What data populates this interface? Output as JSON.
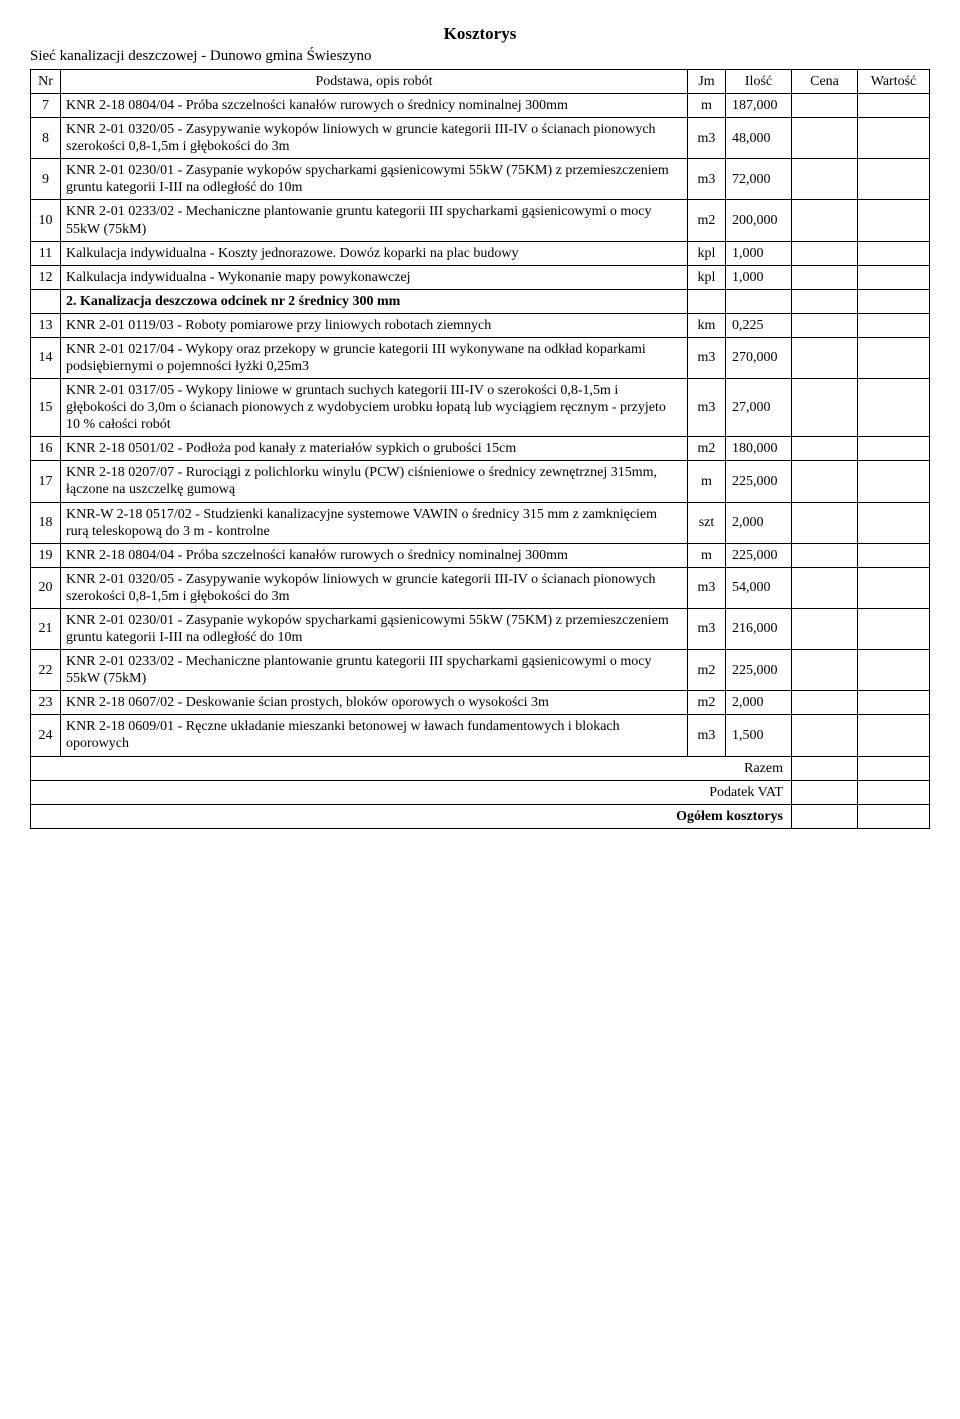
{
  "header": {
    "title": "Kosztorys",
    "subtitle": "Sieć kanalizacji deszczowej - Dunowo gmina Świeszyno"
  },
  "columns": {
    "nr": "Nr",
    "desc": "Podstawa, opis robót",
    "jm": "Jm",
    "ilosc": "Ilość",
    "cena": "Cena",
    "wartosc": "Wartość"
  },
  "rows": [
    {
      "nr": "7",
      "desc": "KNR 2-18 0804/04 - Próba szczelności kanałów rurowych o średnicy nominalnej 300mm",
      "jm": "m",
      "ilosc": "187,000"
    },
    {
      "nr": "8",
      "desc": "KNR 2-01 0320/05 - Zasypywanie wykopów liniowych w gruncie kategorii III-IV o ścianach pionowych szerokości 0,8-1,5m i głębokości do 3m",
      "jm": "m3",
      "ilosc": "48,000"
    },
    {
      "nr": "9",
      "desc": "KNR 2-01 0230/01 - Zasypanie wykopów spycharkami gąsienicowymi 55kW (75KM) z przemieszczeniem gruntu kategorii I-III na odległość do 10m",
      "jm": "m3",
      "ilosc": "72,000"
    },
    {
      "nr": "10",
      "desc": "KNR 2-01 0233/02 - Mechaniczne plantowanie gruntu kategorii III spycharkami gąsienicowymi o mocy 55kW (75kM)",
      "jm": "m2",
      "ilosc": "200,000"
    },
    {
      "nr": "11",
      "desc": "Kalkulacja indywidualna - Koszty jednorazowe. Dowóz koparki na plac budowy",
      "jm": "kpl",
      "ilosc": "1,000"
    },
    {
      "nr": "12",
      "desc": "Kalkulacja indywidualna - Wykonanie mapy powykonawczej",
      "jm": "kpl",
      "ilosc": "1,000"
    },
    {
      "section": true,
      "desc": "2. Kanalizacja deszczowa odcinek nr 2 średnicy 300 mm"
    },
    {
      "nr": "13",
      "desc": "KNR 2-01 0119/03 - Roboty pomiarowe przy liniowych robotach ziemnych",
      "jm": "km",
      "ilosc": "0,225"
    },
    {
      "nr": "14",
      "desc": "KNR 2-01 0217/04 - Wykopy oraz przekopy w gruncie kategorii III wykonywane na odkład koparkami podsiębiernymi o pojemności łyżki 0,25m3",
      "jm": "m3",
      "ilosc": "270,000"
    },
    {
      "nr": "15",
      "desc": "KNR 2-01 0317/05 - Wykopy liniowe w gruntach suchych kategorii III-IV o szerokości 0,8-1,5m i głębokości do 3,0m o ścianach pionowych z wydobyciem urobku łopatą lub wyciągiem ręcznym - przyjeto 10 % całości robót",
      "jm": "m3",
      "ilosc": "27,000"
    },
    {
      "nr": "16",
      "desc": "KNR 2-18 0501/02 - Podłoża pod kanały z materiałów sypkich o grubości 15cm",
      "jm": "m2",
      "ilosc": "180,000"
    },
    {
      "nr": "17",
      "desc": "KNR 2-18 0207/07 - Rurociągi z polichlorku winylu (PCW) ciśnieniowe o średnicy zewnętrznej 315mm, łączone na uszczelkę gumową",
      "jm": "m",
      "ilosc": "225,000"
    },
    {
      "nr": "18",
      "desc": "KNR-W 2-18 0517/02 - Studzienki kanalizacyjne systemowe VAWIN o średnicy 315 mm z zamknięciem rurą teleskopową do 3 m - kontrolne",
      "jm": "szt",
      "ilosc": "2,000"
    },
    {
      "nr": "19",
      "desc": "KNR 2-18 0804/04 - Próba szczelności kanałów rurowych o średnicy nominalnej 300mm",
      "jm": "m",
      "ilosc": "225,000"
    },
    {
      "nr": "20",
      "desc": "KNR 2-01 0320/05 - Zasypywanie wykopów liniowych w gruncie kategorii III-IV o ścianach pionowych szerokości 0,8-1,5m i głębokości do 3m",
      "jm": "m3",
      "ilosc": "54,000"
    },
    {
      "nr": "21",
      "desc": "KNR 2-01 0230/01 - Zasypanie wykopów spycharkami gąsienicowymi 55kW (75KM) z przemieszczeniem gruntu kategorii I-III na odległość do 10m",
      "jm": "m3",
      "ilosc": "216,000"
    },
    {
      "nr": "22",
      "desc": "KNR 2-01 0233/02 - Mechaniczne plantowanie gruntu kategorii III spycharkami gąsienicowymi o mocy 55kW (75kM)",
      "jm": "m2",
      "ilosc": "225,000"
    },
    {
      "nr": "23",
      "desc": "KNR 2-18 0607/02 - Deskowanie ścian prostych, bloków oporowych o wysokości 3m",
      "jm": "m2",
      "ilosc": "2,000"
    },
    {
      "nr": "24",
      "desc": "KNR 2-18 0609/01 - Ręczne układanie mieszanki betonowej w ławach fundamentowych i blokach oporowych",
      "jm": "m3",
      "ilosc": "1,500"
    }
  ],
  "footer": {
    "razem": "Razem",
    "vat": "Podatek VAT",
    "ogolem": "Ogółem kosztorys"
  }
}
